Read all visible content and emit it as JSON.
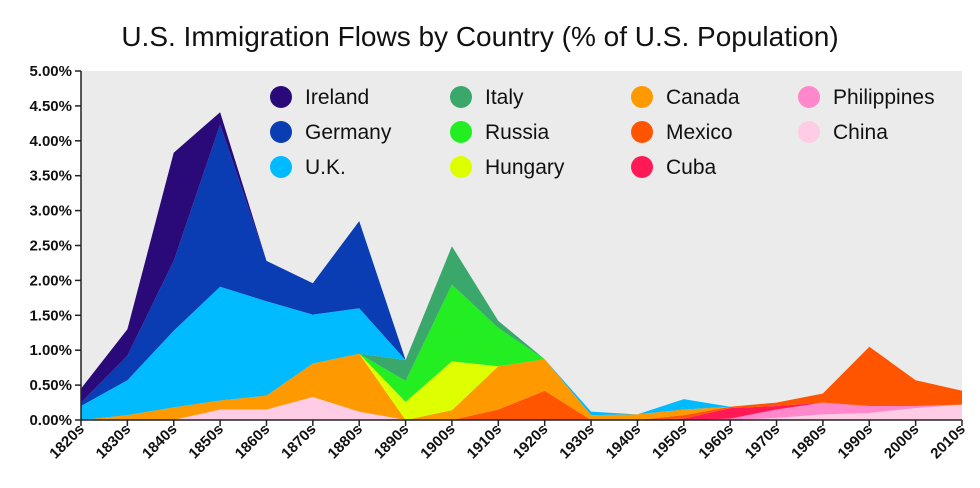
{
  "chart_data": {
    "type": "area",
    "stacked": true,
    "title": "U.S. Immigration Flows by Country (% of U.S. Population)",
    "xlabel": "",
    "ylabel": "",
    "x": [
      "1820s",
      "1830s",
      "1840s",
      "1850s",
      "1860s",
      "1870s",
      "1880s",
      "1890s",
      "1900s",
      "1910s",
      "1920s",
      "1930s",
      "1940s",
      "1950s",
      "1960s",
      "1970s",
      "1980s",
      "1990s",
      "2000s",
      "2010s"
    ],
    "ylim": [
      0,
      5
    ],
    "yticks": [
      0,
      0.5,
      1,
      1.5,
      2,
      2.5,
      3,
      3.5,
      4,
      4.5,
      5
    ],
    "ytick_labels": [
      "0.00%",
      "0.50%",
      "1.00%",
      "1.50%",
      "2.00%",
      "2.50%",
      "3.00%",
      "3.50%",
      "4.00%",
      "4.50%",
      "5.00%"
    ],
    "legend_position": "top",
    "series": [
      {
        "name": "China",
        "color": "#ffcce6",
        "values": [
          0,
          0,
          0,
          0.15,
          0.15,
          0.33,
          0.12,
          0,
          0,
          0,
          0,
          0,
          0,
          0,
          0,
          0.03,
          0.08,
          0.1,
          0.17,
          0.22
        ]
      },
      {
        "name": "Philippines",
        "color": "#ff88cc",
        "values": [
          0,
          0,
          0,
          0,
          0,
          0,
          0,
          0,
          0,
          0,
          0,
          0,
          0,
          0,
          0.02,
          0.12,
          0.17,
          0.1,
          0.03,
          0
        ]
      },
      {
        "name": "Cuba",
        "color": "#ff1a55",
        "values": [
          0,
          0,
          0,
          0,
          0,
          0,
          0,
          0,
          0,
          0,
          0,
          0,
          0,
          0.02,
          0.15,
          0.05,
          0,
          0,
          0,
          0
        ]
      },
      {
        "name": "Mexico",
        "color": "#ff5500",
        "values": [
          0,
          0,
          0,
          0,
          0,
          0,
          0,
          0,
          0,
          0.15,
          0.42,
          0,
          0,
          0.05,
          0.02,
          0.05,
          0.13,
          0.85,
          0.37,
          0.2
        ]
      },
      {
        "name": "Canada",
        "color": "#ff9900",
        "values": [
          0,
          0.07,
          0.18,
          0.13,
          0.2,
          0.48,
          0.83,
          0,
          0.14,
          0.62,
          0.45,
          0.07,
          0.08,
          0.08,
          0,
          0,
          0,
          0,
          0,
          0
        ]
      },
      {
        "name": "Hungary",
        "color": "#ddff00",
        "values": [
          0,
          0,
          0,
          0,
          0,
          0,
          0,
          0.26,
          0.7,
          0,
          0,
          0,
          0,
          0,
          0,
          0,
          0,
          0,
          0,
          0
        ]
      },
      {
        "name": "Russia",
        "color": "#22ee22",
        "values": [
          0,
          0,
          0,
          0,
          0,
          0,
          0,
          0.3,
          1.1,
          0.55,
          0,
          0,
          0,
          0,
          0,
          0,
          0,
          0,
          0,
          0
        ]
      },
      {
        "name": "Italy",
        "color": "#3aa86b",
        "values": [
          0,
          0,
          0,
          0,
          0,
          0,
          0,
          0.3,
          0.55,
          0.1,
          0,
          0,
          0,
          0,
          0,
          0,
          0,
          0,
          0,
          0
        ]
      },
      {
        "name": "U.K.",
        "color": "#00bbff",
        "values": [
          0.2,
          0.5,
          1.1,
          1.63,
          1.35,
          0.7,
          0.65,
          0,
          0,
          0,
          0,
          0.05,
          0,
          0.15,
          0,
          0,
          0,
          0,
          0,
          0
        ]
      },
      {
        "name": "Germany",
        "color": "#0a3cb3",
        "values": [
          0.05,
          0.35,
          1.0,
          2.32,
          0.58,
          0.45,
          1.25,
          0,
          0,
          0,
          0,
          0,
          0,
          0,
          0,
          0,
          0,
          0,
          0,
          0
        ]
      },
      {
        "name": "Ireland",
        "color": "#2a0a78",
        "values": [
          0.2,
          0.38,
          1.55,
          0.18,
          0,
          0,
          0,
          0,
          0,
          0,
          0,
          0,
          0,
          0,
          0,
          0,
          0,
          0,
          0,
          0
        ]
      }
    ],
    "legend": [
      "Ireland",
      "Germany",
      "U.K.",
      "Italy",
      "Russia",
      "Hungary",
      "Canada",
      "Mexico",
      "Cuba",
      "Philippines",
      "China"
    ]
  }
}
